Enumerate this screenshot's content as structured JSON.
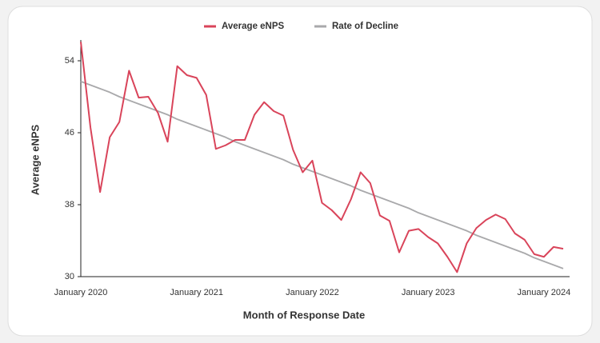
{
  "chart_data": {
    "type": "line",
    "x_label": "Month of Response Date",
    "y_label": "Average eNPS",
    "categories": [
      "January 2020",
      null,
      null,
      null,
      null,
      null,
      null,
      null,
      null,
      null,
      null,
      null,
      "January 2021",
      null,
      null,
      null,
      null,
      null,
      null,
      null,
      null,
      null,
      null,
      null,
      "January 2022",
      null,
      null,
      null,
      null,
      null,
      null,
      null,
      null,
      null,
      null,
      null,
      "January 2023",
      null,
      null,
      null,
      null,
      null,
      null,
      null,
      null,
      null,
      null,
      null,
      "January 2024",
      null,
      null
    ],
    "series": [
      {
        "name": "Average eNPS",
        "color": "#d9445a",
        "values": [
          56.1,
          46.6,
          39.4,
          45.5,
          47.2,
          52.9,
          49.9,
          50.0,
          48.2,
          45.0,
          53.4,
          52.4,
          52.1,
          50.2,
          44.2,
          44.6,
          45.2,
          45.2,
          48.0,
          49.4,
          48.4,
          47.9,
          44.1,
          41.6,
          42.9,
          38.2,
          37.4,
          36.3,
          38.6,
          41.6,
          40.4,
          36.8,
          36.2,
          32.7,
          35.1,
          35.3,
          34.4,
          33.7,
          32.2,
          30.5,
          33.7,
          35.4,
          36.3,
          36.9,
          36.4,
          34.8,
          34.1,
          32.5,
          32.2,
          33.3,
          33.1
        ]
      },
      {
        "name": "Rate of Decline",
        "color": "#a9a9ab",
        "values": [
          51.7,
          51.3,
          50.9,
          50.5,
          50.0,
          49.6,
          49.2,
          48.8,
          48.4,
          48.0,
          47.5,
          47.1,
          46.7,
          46.3,
          45.9,
          45.5,
          45.0,
          44.6,
          44.2,
          43.8,
          43.4,
          43.0,
          42.5,
          42.1,
          41.7,
          41.3,
          40.9,
          40.5,
          40.1,
          39.6,
          39.2,
          38.8,
          38.4,
          38.0,
          37.6,
          37.1,
          36.7,
          36.3,
          35.9,
          35.5,
          35.1,
          34.6,
          34.2,
          33.8,
          33.4,
          33.0,
          32.6,
          32.1,
          31.7,
          31.3,
          30.9
        ]
      }
    ],
    "ylim": [
      30,
      56.2
    ],
    "yticks": [
      30,
      38,
      46,
      54
    ],
    "grid": false,
    "legend": "top"
  }
}
